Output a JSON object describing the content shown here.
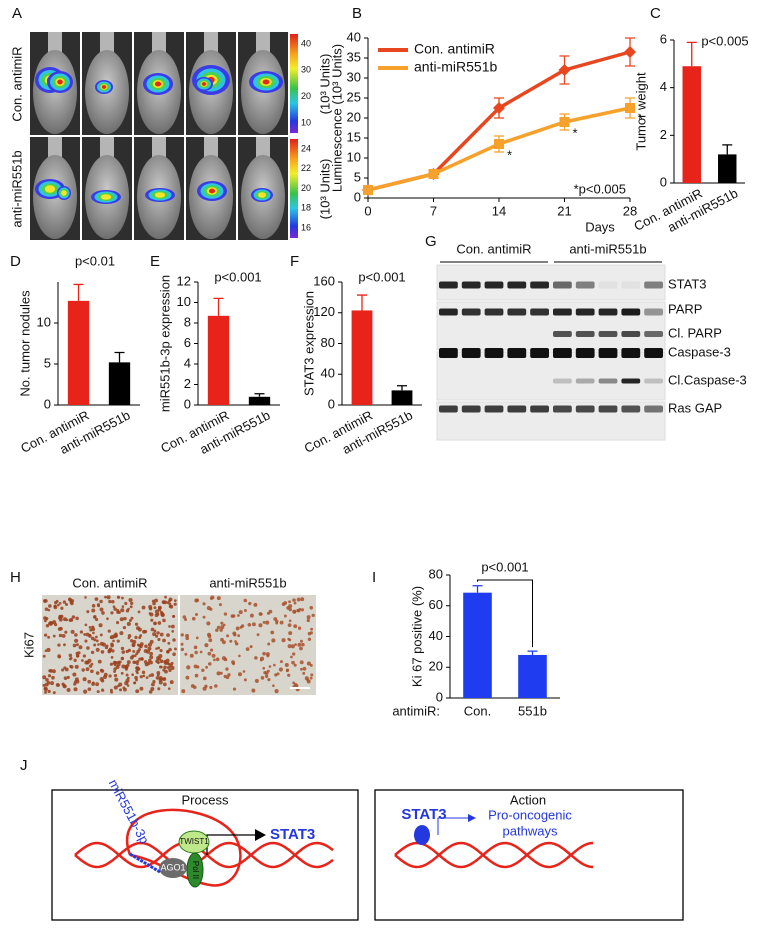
{
  "panel_labels": [
    "A",
    "B",
    "C",
    "D",
    "E",
    "F",
    "G",
    "H",
    "I",
    "J"
  ],
  "imaging": {
    "rows": [
      "Con. antimiR",
      "anti-miR551b"
    ],
    "unit": "(10³ Units)",
    "scales": [
      [
        40,
        30,
        20,
        10
      ],
      [
        24,
        22,
        20,
        18,
        16
      ]
    ]
  },
  "chart_data": [
    {
      "type": "line",
      "x": [
        0,
        7,
        14,
        21,
        28
      ],
      "xlim": [
        0,
        28
      ],
      "xticks": [
        0,
        7,
        14,
        21,
        28
      ],
      "xlabel": "Days",
      "ylabel": "Luminescence (10³ Units)",
      "ylim": [
        0,
        40
      ],
      "yticks": [
        0,
        5,
        10,
        15,
        20,
        25,
        30,
        35,
        40
      ],
      "series": [
        {
          "name": "Con. antimiR",
          "color": "#e8461e",
          "marker": "diamond",
          "values": [
            2,
            6,
            22.5,
            32,
            36.5
          ],
          "errors": [
            0.5,
            1,
            2.5,
            3.5,
            3.5
          ]
        },
        {
          "name": "anti-miR551b",
          "color": "#f6a12c",
          "marker": "square",
          "values": [
            2,
            6,
            13.5,
            19,
            22.5
          ],
          "errors": [
            0.5,
            1,
            2,
            2,
            2.5
          ],
          "marks": [
            null,
            null,
            "*",
            "*",
            "*"
          ]
        }
      ],
      "annotation": "*p<0.005"
    },
    {
      "type": "bar",
      "categories": [
        "Con. antimiR",
        "anti-miR551b"
      ],
      "values": [
        4.9,
        1.2
      ],
      "errors": [
        1.0,
        0.4
      ],
      "colors": [
        "#e8231a",
        "#000000"
      ],
      "ylim": [
        0,
        6
      ],
      "yticks": [
        0,
        2,
        4,
        6
      ],
      "ylabel": "Tumor weight",
      "annotation": "p<0.005"
    },
    {
      "type": "bar",
      "categories": [
        "Con. antimiR",
        "anti-miR551b"
      ],
      "values": [
        12.7,
        5.2
      ],
      "errors": [
        2,
        1.2
      ],
      "colors": [
        "#e8231a",
        "#000000"
      ],
      "ylim": [
        0,
        15
      ],
      "yticks": [
        0,
        5,
        10
      ],
      "ylabel": "No. tumor nodules",
      "annotation": "p<0.01"
    },
    {
      "type": "bar",
      "categories": [
        "Con. antimiR",
        "anti-miR551b"
      ],
      "values": [
        8.7,
        0.8
      ],
      "errors": [
        1.7,
        0.3
      ],
      "colors": [
        "#e8231a",
        "#000000"
      ],
      "ylim": [
        0,
        12
      ],
      "yticks": [
        0,
        2,
        4,
        6,
        8,
        10,
        12
      ],
      "ylabel": "miR551b-3p expression",
      "annotation": "p<0.001"
    },
    {
      "type": "bar",
      "categories": [
        "Con. antimiR",
        "anti-miR551b"
      ],
      "values": [
        123,
        19
      ],
      "errors": [
        20,
        6
      ],
      "colors": [
        "#e8231a",
        "#000000"
      ],
      "ylim": [
        0,
        160
      ],
      "yticks": [
        0,
        40,
        80,
        120,
        160
      ],
      "ylabel": "STAT3 expression",
      "annotation": "p<0.001"
    },
    {
      "type": "bar",
      "categories": [
        "Con.",
        "551b"
      ],
      "category_title": "antimiR:",
      "values": [
        68.5,
        28
      ],
      "errors": [
        4.5,
        2.5
      ],
      "colors": [
        "#1f3cf0",
        "#1f3cf0"
      ],
      "ylim": [
        0,
        80
      ],
      "yticks": [
        0,
        20,
        40,
        60,
        80
      ],
      "ylabel": "Ki 67 positive (%)",
      "annotation": "p<0.001"
    }
  ],
  "blot": {
    "groups": [
      "Con. antimiR",
      "anti-miR551b"
    ],
    "bands": [
      "STAT3",
      "PARP",
      "Cl. PARP",
      "Caspase-3",
      "Cl.Caspase-3",
      "Ras GAP"
    ]
  },
  "ihc": {
    "columns": [
      "Con. antimiR",
      "anti-miR551b"
    ],
    "stain": "Ki67"
  },
  "model": {
    "process": {
      "title": "Process",
      "mirna": "miR551b-3p",
      "ago": "AGO1",
      "factor": "TWIST1",
      "polymerase": "Pol II",
      "gene": "STAT3"
    },
    "action": {
      "title": "Action",
      "protein": "STAT3",
      "text": [
        "Pro-oncogenic",
        "pathways"
      ]
    }
  }
}
